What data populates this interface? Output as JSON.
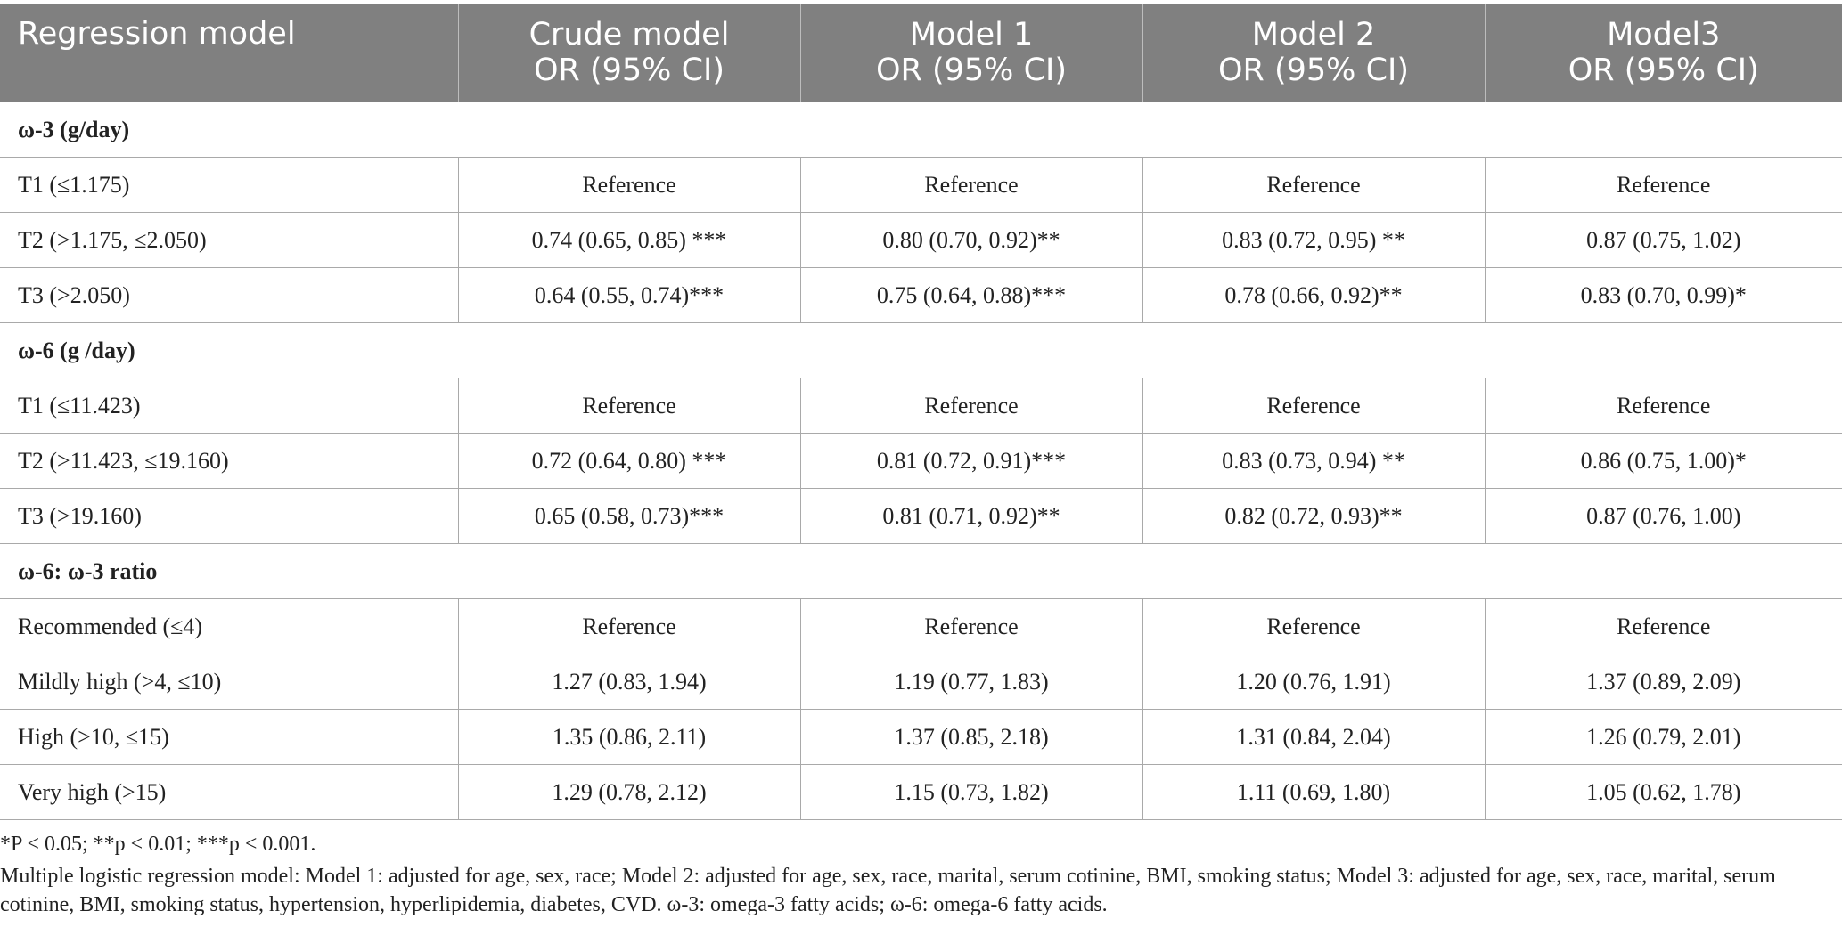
{
  "table": {
    "headers": [
      {
        "line1": "Regression model",
        "line2": ""
      },
      {
        "line1": "Crude model",
        "line2": "OR (95% CI)"
      },
      {
        "line1": "Model 1",
        "line2": "OR (95% CI)"
      },
      {
        "line1": "Model 2",
        "line2": "OR (95% CI)"
      },
      {
        "line1": "Model3",
        "line2": "OR (95% CI)"
      }
    ],
    "sections": [
      {
        "title": "ω-3 (g/day)",
        "rows": [
          [
            "T1 (≤1.175)",
            "Reference",
            "Reference",
            "Reference",
            "Reference"
          ],
          [
            "T2 (>1.175, ≤2.050)",
            "0.74 (0.65, 0.85) ***",
            "0.80 (0.70, 0.92)**",
            "0.83 (0.72, 0.95) **",
            "0.87 (0.75, 1.02)"
          ],
          [
            "T3 (>2.050)",
            "0.64 (0.55, 0.74)***",
            "0.75 (0.64, 0.88)***",
            "0.78 (0.66, 0.92)**",
            "0.83 (0.70, 0.99)*"
          ]
        ]
      },
      {
        "title": "ω-6 (g /day)",
        "rows": [
          [
            "T1 (≤11.423)",
            "Reference",
            "Reference",
            "Reference",
            "Reference"
          ],
          [
            "T2 (>11.423, ≤19.160)",
            "0.72 (0.64, 0.80) ***",
            "0.81 (0.72, 0.91)***",
            "0.83 (0.73, 0.94) **",
            "0.86 (0.75, 1.00)*"
          ],
          [
            "T3 (>19.160)",
            "0.65 (0.58, 0.73)***",
            "0.81 (0.71, 0.92)**",
            "0.82 (0.72, 0.93)**",
            "0.87 (0.76, 1.00)"
          ]
        ]
      },
      {
        "title": "ω-6: ω-3 ratio",
        "rows": [
          [
            "Recommended (≤4)",
            "Reference",
            "Reference",
            "Reference",
            "Reference"
          ],
          [
            "Mildly high (>4, ≤10)",
            "1.27 (0.83, 1.94)",
            "1.19 (0.77, 1.83)",
            "1.20 (0.76, 1.91)",
            "1.37 (0.89, 2.09)"
          ],
          [
            "High (>10, ≤15)",
            "1.35 (0.86, 2.11)",
            "1.37 (0.85, 2.18)",
            "1.31 (0.84, 2.04)",
            "1.26 (0.79, 2.01)"
          ],
          [
            "Very high (>15)",
            "1.29 (0.78, 2.12)",
            "1.15 (0.73, 1.82)",
            "1.11 (0.69, 1.80)",
            "1.05 (0.62, 1.78)"
          ]
        ]
      }
    ]
  },
  "footnotes": {
    "significance": "*P < 0.05; **p < 0.01; ***p < 0.001.",
    "description": "Multiple logistic regression model: Model 1: adjusted for age, sex, race; Model 2: adjusted for age, sex, race, marital, serum cotinine, BMI, smoking status; Model 3: adjusted for age, sex, race, marital, serum cotinine, BMI, smoking status, hypertension, hyperlipidemia, diabetes, CVD. ω-3: omega-3 fatty acids; ω-6: omega-6 fatty acids."
  }
}
